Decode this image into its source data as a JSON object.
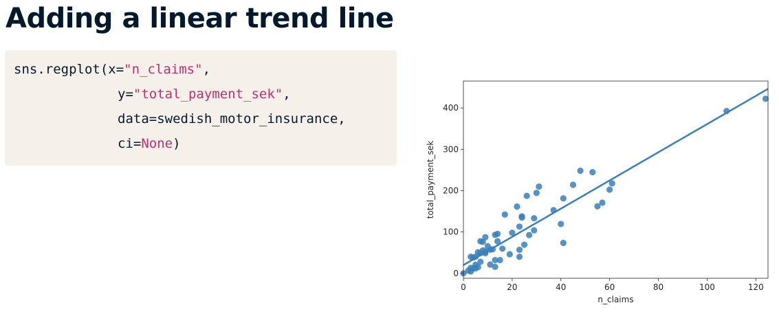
{
  "title": "Adding a linear trend line",
  "code": {
    "func": "sns.regplot(",
    "arg1_name": "x=",
    "arg1_value": "\"n_claims\"",
    "arg2_name": "y=",
    "arg2_value": "\"total_payment_sek\"",
    "arg3": "data=swedish_motor_insurance,",
    "arg4_name": "ci=",
    "arg4_value": "None",
    "close": ")"
  },
  "chart_data": {
    "type": "scatter",
    "xlabel": "n_claims",
    "ylabel": "total_payment_sek",
    "xlim": [
      0,
      125
    ],
    "ylim": [
      -12,
      465
    ],
    "xticks": [
      0,
      20,
      40,
      60,
      80,
      100,
      120
    ],
    "yticks": [
      0,
      100,
      200,
      300,
      400
    ],
    "color": "#3a7fb8",
    "trend_line": {
      "intercept": 19.99,
      "slope": 3.41
    },
    "points": [
      [
        108,
        392.5
      ],
      [
        124,
        422.2
      ],
      [
        48,
        248.1
      ],
      [
        53,
        244.6
      ],
      [
        61,
        217.6
      ],
      [
        60,
        202.4
      ],
      [
        57,
        170.9
      ],
      [
        55,
        162.1
      ],
      [
        45,
        214.0
      ],
      [
        41,
        181.3
      ],
      [
        40,
        119.4
      ],
      [
        41,
        73.4
      ],
      [
        37,
        152.8
      ],
      [
        31,
        209.8
      ],
      [
        30,
        194.5
      ],
      [
        29,
        133.3
      ],
      [
        29,
        103.9
      ],
      [
        26,
        187.5
      ],
      [
        27,
        92.6
      ],
      [
        25,
        69.2
      ],
      [
        24,
        134.9
      ],
      [
        24,
        137.9
      ],
      [
        23,
        113.0
      ],
      [
        23,
        56.9
      ],
      [
        23,
        39.9
      ],
      [
        22,
        161.5
      ],
      [
        20,
        98.1
      ],
      [
        19,
        46.2
      ],
      [
        17,
        142.1
      ],
      [
        16,
        59.6
      ],
      [
        15,
        32.1
      ],
      [
        14,
        95.5
      ],
      [
        14,
        77.5
      ],
      [
        13,
        93.0
      ],
      [
        13,
        31.9
      ],
      [
        13,
        15.7
      ],
      [
        12,
        58.1
      ],
      [
        11,
        57.2
      ],
      [
        11,
        21.3
      ],
      [
        10,
        65.3
      ],
      [
        9,
        87.4
      ],
      [
        9,
        48.7
      ],
      [
        9,
        52.1
      ],
      [
        8,
        76.1
      ],
      [
        8,
        55.6
      ],
      [
        7,
        77.5
      ],
      [
        7,
        48.8
      ],
      [
        7,
        27.9
      ],
      [
        6,
        50.9
      ],
      [
        6,
        14.8
      ],
      [
        5,
        40.3
      ],
      [
        5,
        20.9
      ],
      [
        5,
        12.2
      ],
      [
        4,
        38.1
      ],
      [
        4,
        11.8
      ],
      [
        3,
        39.9
      ],
      [
        3,
        13.2
      ],
      [
        3,
        4.4
      ],
      [
        2,
        6.6
      ],
      [
        0,
        0.0
      ]
    ]
  }
}
